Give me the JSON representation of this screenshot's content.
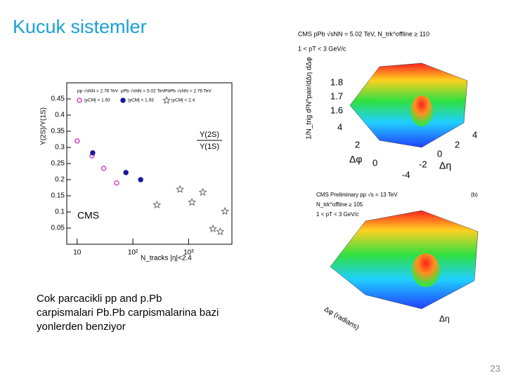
{
  "slide": {
    "title": "Kucuk sistemler",
    "body": [
      "Cok parcacikli pp and p.Pb",
      "carpismalari Pb.Pb carpismalarina bazi",
      "yonlerden benziyor"
    ],
    "page_number": "23"
  },
  "chart_data": {
    "type": "scatter",
    "y_label": "Υ(2S)/Υ(1S)",
    "x_label": "N_tracks |η|<2.4",
    "annotation": "CMS",
    "ratio_label": [
      "Υ(2S)",
      "Υ(1S)"
    ],
    "xlim": [
      6.5,
      6000
    ],
    "log_x": true,
    "xticks": [
      10,
      {
        "value": 100,
        "label": "10²"
      },
      {
        "value": 1000,
        "label": "10³"
      }
    ],
    "ylim": [
      0,
      0.5
    ],
    "yticks": [
      0.05,
      0.1,
      0.15,
      0.2,
      0.25,
      0.3,
      0.35,
      0.4,
      0.45
    ],
    "series": [
      {
        "name": "pp √sNN = 2.76 TeV",
        "detail": "|yCM| < 1.93",
        "color": "#e040c8",
        "marker": "open-circle",
        "x": [
          10,
          18.5,
          30,
          51
        ],
        "values": [
          0.32,
          0.274,
          0.235,
          0.19
        ]
      },
      {
        "name": "pPb √sNN = 5.02 TeV",
        "detail": "|yCM| < 1.93",
        "color": "#1a1a9c",
        "marker": "filled-circle",
        "x": [
          19,
          75,
          138
        ],
        "values": [
          0.283,
          0.222,
          0.2
        ]
      },
      {
        "name": "PbPb √sNN = 2.76 TeV",
        "detail": "|yCM| < 2.4",
        "color": "#666666",
        "marker": "open-star",
        "x": [
          270,
          700,
          1150,
          1800,
          2740,
          3700,
          4500
        ],
        "values": [
          0.122,
          0.17,
          0.13,
          0.161,
          0.048,
          0.039,
          0.102
        ]
      }
    ]
  },
  "surface_plots": [
    {
      "header": "CMS pPb √sNN = 5.02 TeV, N_trk^offline ≥ 110",
      "cut": "1 < pT < 3 GeV/c",
      "z_label": "1/N_trig d²N^pair/dΔη dΔφ",
      "z_ticks": [
        "1.8",
        "1.7",
        "1.6"
      ],
      "phi_label": "Δφ",
      "phi_ticks": [
        "4",
        "2",
        "0"
      ],
      "eta_label": "Δη",
      "eta_ticks": [
        "4",
        "2",
        "0",
        "-2",
        "-4"
      ]
    },
    {
      "header": "CMS Preliminary pp √s = 13 TeV",
      "mult": "N_trk^offline ≥ 105",
      "cut": "1 < pT < 3 GeV/c",
      "panel": "(b)",
      "phi_label": "Δφ (radians)",
      "eta_label": "Δη"
    }
  ]
}
